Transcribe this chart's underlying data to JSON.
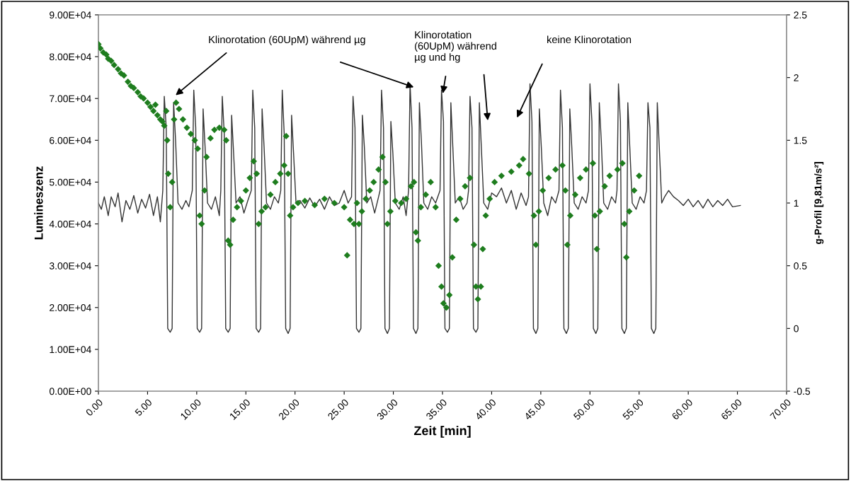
{
  "chart_data": {
    "type": "scatter",
    "xlabel": "Zeit [min]",
    "ylabel": "Lumineszenz",
    "y2label": "g-Profil [9,81m/s²]",
    "xlim": [
      0,
      70
    ],
    "xticks": [
      {
        "value": 0,
        "label": "0.00"
      },
      {
        "value": 5,
        "label": "5.00"
      },
      {
        "value": 10,
        "label": "10.00"
      },
      {
        "value": 15,
        "label": "15.00"
      },
      {
        "value": 20,
        "label": "20.00"
      },
      {
        "value": 25,
        "label": "25.00"
      },
      {
        "value": 30,
        "label": "30.00"
      },
      {
        "value": 35,
        "label": "35.00"
      },
      {
        "value": 40,
        "label": "40.00"
      },
      {
        "value": 45,
        "label": "45.00"
      },
      {
        "value": 50,
        "label": "50.00"
      },
      {
        "value": 55,
        "label": "55.00"
      },
      {
        "value": 60,
        "label": "60.00"
      },
      {
        "value": 65,
        "label": "65.00"
      },
      {
        "value": 70,
        "label": "70.00"
      }
    ],
    "ylim": [
      0,
      90000
    ],
    "yticks": [
      {
        "value": 0,
        "label": "0.00E+00"
      },
      {
        "value": 10000,
        "label": "1.00E+04"
      },
      {
        "value": 20000,
        "label": "2.00E+04"
      },
      {
        "value": 30000,
        "label": "3.00E+04"
      },
      {
        "value": 40000,
        "label": "4.00E+04"
      },
      {
        "value": 50000,
        "label": "5.00E+04"
      },
      {
        "value": 60000,
        "label": "6.00E+04"
      },
      {
        "value": 70000,
        "label": "7.00E+04"
      },
      {
        "value": 80000,
        "label": "8.00E+04"
      },
      {
        "value": 90000,
        "label": "9.00E+04"
      }
    ],
    "y2lim": [
      -0.5,
      2.5
    ],
    "y2ticks": [
      {
        "value": -0.5,
        "label": "-0.5"
      },
      0,
      0.5,
      1,
      1.5,
      2,
      2.5
    ],
    "grid": false,
    "legend": false,
    "series": [
      {
        "type": "line",
        "axis": "y2",
        "color": "#333333",
        "marker": "none",
        "line_style": "solid",
        "x": [
          0,
          0.3,
          0.6,
          1.0,
          1.3,
          1.7,
          2.0,
          2.4,
          2.8,
          3.2,
          3.6,
          4.0,
          4.4,
          4.8,
          5.2,
          5.6,
          6.0,
          6.3,
          6.55,
          6.7,
          6.9,
          7.05,
          7.3,
          7.5,
          7.65,
          7.85,
          8.1,
          8.5,
          8.9,
          9.2,
          9.55,
          9.7,
          9.9,
          10.05,
          10.3,
          10.5,
          10.65,
          10.85,
          11.1,
          11.5,
          11.9,
          12.3,
          12.45,
          12.6,
          12.8,
          12.95,
          13.2,
          13.4,
          13.55,
          13.75,
          14.0,
          14.4,
          14.8,
          15.2,
          15.55,
          15.7,
          15.9,
          16.05,
          16.3,
          16.5,
          16.65,
          16.85,
          17.1,
          17.5,
          17.9,
          18.3,
          18.55,
          18.7,
          18.9,
          19.05,
          19.3,
          19.5,
          19.65,
          19.85,
          20.1,
          20.5,
          21.0,
          21.5,
          22.0,
          22.5,
          23.0,
          23.5,
          24.0,
          24.5,
          25.0,
          25.4,
          25.75,
          25.9,
          26.1,
          26.25,
          26.5,
          26.7,
          26.85,
          27.05,
          27.3,
          27.7,
          28.1,
          28.5,
          28.65,
          28.8,
          29.0,
          29.15,
          29.4,
          29.6,
          29.75,
          29.95,
          30.2,
          30.6,
          31.0,
          31.3,
          31.55,
          31.7,
          31.9,
          32.05,
          32.3,
          32.5,
          32.65,
          32.85,
          33.1,
          33.5,
          33.9,
          34.3,
          34.75,
          34.9,
          35.1,
          35.25,
          35.5,
          35.7,
          35.85,
          36.05,
          36.3,
          36.7,
          37.1,
          37.5,
          37.65,
          37.8,
          38.0,
          38.15,
          38.4,
          38.6,
          38.75,
          38.95,
          39.2,
          39.6,
          40.0,
          40.5,
          41.0,
          41.5,
          42.0,
          42.5,
          43.0,
          43.5,
          43.75,
          43.9,
          44.1,
          44.25,
          44.5,
          44.7,
          44.85,
          45.05,
          45.3,
          45.7,
          46.1,
          46.5,
          46.85,
          47.0,
          47.2,
          47.35,
          47.6,
          47.8,
          47.95,
          48.15,
          48.4,
          48.8,
          49.2,
          49.6,
          49.85,
          50.0,
          50.2,
          50.35,
          50.6,
          50.8,
          50.95,
          51.15,
          51.4,
          51.8,
          52.2,
          52.6,
          52.75,
          52.9,
          53.1,
          53.25,
          53.5,
          53.7,
          53.85,
          54.05,
          54.3,
          54.7,
          55.1,
          55.5,
          55.75,
          55.9,
          56.1,
          56.25,
          56.5,
          56.7,
          56.85,
          57.05,
          57.3,
          57.6,
          58.0,
          58.5,
          59.0,
          59.5,
          60.0,
          60.5,
          61.0,
          61.5,
          62.0,
          62.5,
          63.0,
          63.5,
          64.0,
          64.5,
          65.3
        ],
        "values": [
          1.0,
          0.95,
          1.05,
          0.9,
          1.05,
          0.97,
          1.08,
          0.85,
          1.02,
          0.95,
          1.06,
          0.92,
          1.03,
          0.96,
          1.07,
          0.9,
          1.05,
          0.85,
          1.1,
          1.85,
          1.6,
          0.0,
          -0.03,
          0.0,
          1.8,
          1.5,
          1.0,
          0.95,
          1.02,
          0.97,
          1.1,
          1.9,
          1.6,
          0.0,
          -0.03,
          0.0,
          1.75,
          1.45,
          1.0,
          0.95,
          1.05,
          0.9,
          1.1,
          1.85,
          1.55,
          0.0,
          -0.03,
          0.0,
          1.7,
          1.4,
          1.0,
          1.05,
          0.92,
          1.02,
          1.1,
          1.9,
          1.6,
          0.0,
          -0.03,
          0.0,
          1.75,
          1.45,
          1.0,
          0.95,
          1.05,
          1.0,
          1.1,
          1.9,
          1.55,
          0.0,
          -0.04,
          0.0,
          1.7,
          1.4,
          1.0,
          1.02,
          0.96,
          1.04,
          0.97,
          1.03,
          0.95,
          1.05,
          0.98,
          1.0,
          1.1,
          1.0,
          1.05,
          1.85,
          1.6,
          0.0,
          -0.03,
          0.0,
          1.7,
          1.45,
          1.0,
          1.05,
          0.92,
          1.05,
          1.1,
          1.9,
          1.6,
          0.0,
          -0.04,
          0.0,
          1.65,
          1.4,
          1.0,
          0.95,
          1.05,
          0.9,
          1.1,
          1.95,
          1.6,
          0.0,
          -0.04,
          0.0,
          1.8,
          1.5,
          1.0,
          0.95,
          1.05,
          1.0,
          1.1,
          1.9,
          1.65,
          0.0,
          -0.03,
          0.0,
          1.8,
          1.45,
          1.0,
          1.05,
          0.95,
          1.0,
          1.1,
          1.85,
          1.6,
          0.0,
          -0.03,
          0.0,
          1.8,
          1.45,
          1.0,
          0.95,
          1.08,
          1.05,
          1.12,
          1.0,
          1.1,
          0.95,
          1.08,
          0.98,
          1.05,
          1.95,
          1.65,
          0.0,
          -0.04,
          0.0,
          1.75,
          1.45,
          1.0,
          0.9,
          1.05,
          1.0,
          1.1,
          1.9,
          1.6,
          0.0,
          -0.04,
          0.0,
          1.75,
          1.45,
          1.0,
          0.95,
          1.05,
          1.0,
          1.1,
          1.95,
          1.65,
          0.0,
          -0.04,
          0.0,
          1.8,
          1.5,
          1.0,
          0.95,
          1.05,
          1.0,
          1.1,
          1.95,
          1.65,
          0.0,
          -0.04,
          0.0,
          1.8,
          1.45,
          1.0,
          0.95,
          1.05,
          1.0,
          1.1,
          1.8,
          1.6,
          0.0,
          -0.04,
          0.0,
          1.8,
          1.45,
          1.0,
          1.05,
          1.1,
          1.05,
          1.02,
          0.98,
          1.03,
          0.97,
          1.02,
          0.96,
          1.03,
          0.97,
          1.02,
          0.98,
          1.03,
          0.97,
          0.98
        ]
      },
      {
        "color": "#1e7d1e",
        "marker": "diamond",
        "x": [
          0,
          0.2,
          0.5,
          0.8,
          1.0,
          1.3,
          1.6,
          2.0,
          2.3,
          2.6,
          3.0,
          3.3,
          3.6,
          4.0,
          4.3,
          4.6,
          5.0,
          5.3,
          5.6,
          5.8,
          6.0,
          6.3,
          6.5,
          6.7,
          6.9,
          7.0,
          7.1,
          7.3,
          7.5,
          7.7,
          7.9,
          8.2,
          8.6,
          9.0,
          9.4,
          9.8,
          10.1,
          10.3,
          10.5,
          10.8,
          11.0,
          11.4,
          11.8,
          12.3,
          12.8,
          13.0,
          13.2,
          13.4,
          13.7,
          14.1,
          14.5,
          15.0,
          15.4,
          15.8,
          16.1,
          16.3,
          16.6,
          17.0,
          17.5,
          18.0,
          18.5,
          18.9,
          19.1,
          19.3,
          19.5,
          19.8,
          20.3,
          21.0,
          22.0,
          23.0,
          24.0,
          25.0,
          25.3,
          25.6,
          26.0,
          26.3,
          26.5,
          26.8,
          27.2,
          27.6,
          28.0,
          28.5,
          28.9,
          29.2,
          29.4,
          29.7,
          30.2,
          30.8,
          31.3,
          31.8,
          32.1,
          32.3,
          32.5,
          32.8,
          33.3,
          33.8,
          34.3,
          34.6,
          34.9,
          35.1,
          35.4,
          35.7,
          36.0,
          36.4,
          36.8,
          37.3,
          37.8,
          38.2,
          38.4,
          38.6,
          38.9,
          39.1,
          39.4,
          39.8,
          40.3,
          41.0,
          42.0,
          42.8,
          43.2,
          43.8,
          44.3,
          44.5,
          44.8,
          45.2,
          45.8,
          46.5,
          47.2,
          47.5,
          47.7,
          48.0,
          48.5,
          49.0,
          49.6,
          50.3,
          50.5,
          50.7,
          51.0,
          51.5,
          52.0,
          52.8,
          53.3,
          53.5,
          53.7,
          54.0,
          54.5,
          55.0
        ],
        "values": [
          83000,
          82000,
          81000,
          80500,
          79500,
          79000,
          78000,
          77000,
          76000,
          75500,
          74000,
          73000,
          72500,
          71500,
          70500,
          70000,
          69000,
          68000,
          67000,
          68500,
          66000,
          65000,
          64500,
          63500,
          67000,
          60000,
          52000,
          44000,
          50000,
          65000,
          69000,
          67500,
          65000,
          63000,
          61500,
          60000,
          58000,
          42000,
          40000,
          48000,
          56000,
          60500,
          62500,
          63000,
          62500,
          60000,
          36000,
          35000,
          41000,
          44000,
          45500,
          48000,
          51000,
          55000,
          52000,
          40000,
          43000,
          44000,
          47000,
          50000,
          52000,
          54000,
          61000,
          52000,
          42000,
          44000,
          45000,
          45500,
          44500,
          46000,
          45000,
          44000,
          32500,
          41000,
          40000,
          45000,
          40000,
          43000,
          46000,
          48000,
          50000,
          53000,
          56000,
          50000,
          40000,
          43000,
          45500,
          45000,
          46000,
          49000,
          50000,
          38000,
          36000,
          44000,
          47000,
          50000,
          44000,
          30000,
          25000,
          21000,
          20000,
          23000,
          32000,
          41000,
          46000,
          49000,
          51000,
          35000,
          25000,
          22000,
          25000,
          34000,
          42000,
          46000,
          50000,
          51500,
          52500,
          54000,
          55500,
          52000,
          42000,
          35000,
          43000,
          48000,
          51000,
          53000,
          54000,
          48000,
          35000,
          42000,
          47000,
          51000,
          53000,
          54500,
          42000,
          34000,
          43000,
          49000,
          51500,
          53000,
          54500,
          40000,
          32000,
          43000,
          48000,
          51500
        ]
      }
    ],
    "annotations": [
      "Klinorotation (60UpM) während µg",
      "Klinorotation\n(60UpM) während\nµg und hg",
      "keine Klinorotation"
    ]
  }
}
